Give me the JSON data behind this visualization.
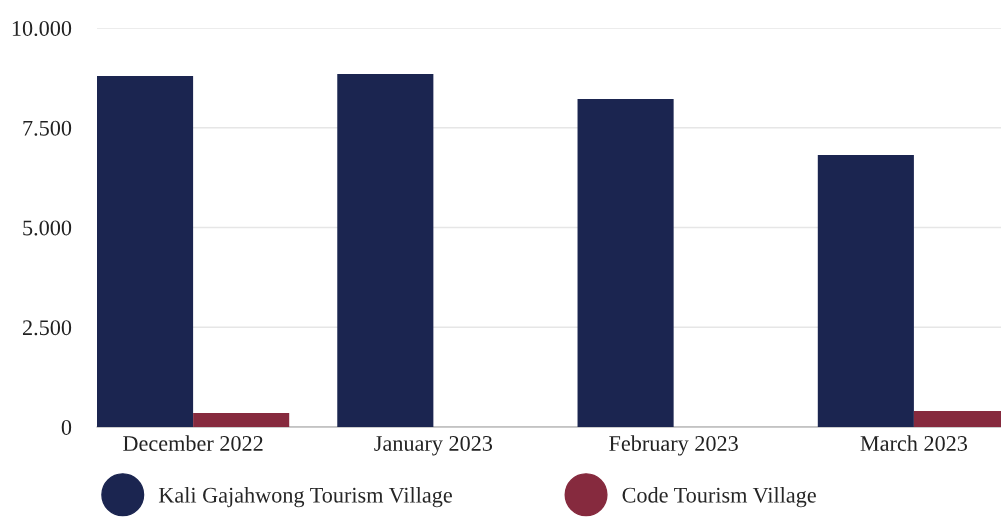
{
  "chart_data": {
    "type": "bar",
    "categories": [
      "December 2022",
      "January 2023",
      "February 2023",
      "March 2023"
    ],
    "series": [
      {
        "name": "Kali Gajahwong Tourism Village",
        "color": "#1b2550",
        "values": [
          8800,
          8850,
          8220,
          6820
        ]
      },
      {
        "name": "Code Tourism Village",
        "color": "#862a3e",
        "values": [
          350,
          0,
          0,
          400
        ]
      }
    ],
    "ylim": [
      0,
      10000
    ],
    "yticks": [
      {
        "value": 0,
        "label": "0"
      },
      {
        "value": 2500,
        "label": "2.500"
      },
      {
        "value": 5000,
        "label": "5.000"
      },
      {
        "value": 7500,
        "label": "7.500"
      },
      {
        "value": 10000,
        "label": "10.000"
      }
    ],
    "grid": "y",
    "legend": "bottom"
  }
}
